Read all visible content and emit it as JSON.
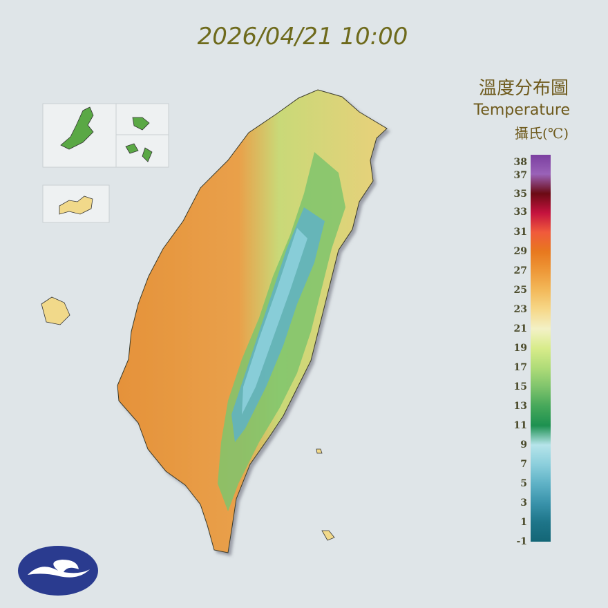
{
  "header": {
    "timestamp": "2026/04/21 10:00",
    "title_zh": "溫度分布圖",
    "title_en": "Temperature",
    "unit": "攝氏(℃)"
  },
  "legend": {
    "labels": [
      38,
      37,
      35,
      33,
      31,
      29,
      27,
      25,
      23,
      21,
      19,
      17,
      15,
      13,
      11,
      9,
      7,
      5,
      3,
      1,
      -1
    ],
    "colors": [
      "#7b3fa0",
      "#9a62b8",
      "#6b0a14",
      "#c4123e",
      "#f05a3c",
      "#e8781e",
      "#ee9838",
      "#f3b95a",
      "#f6d889",
      "#f3f1c6",
      "#d8ec8a",
      "#b0dc78",
      "#7fc46c",
      "#46a85a",
      "#1d9150",
      "#b6e4ea",
      "#8ccfdc",
      "#5fb2c6",
      "#3a93ab",
      "#1e7589",
      "#136676"
    ]
  }
}
